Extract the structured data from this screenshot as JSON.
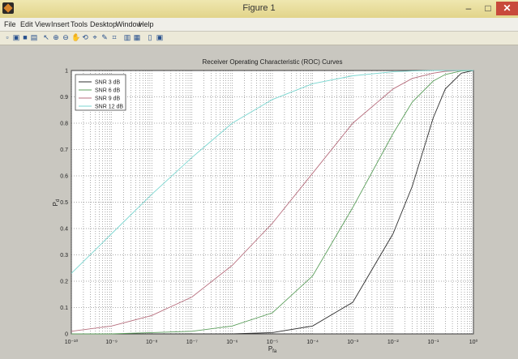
{
  "window": {
    "title": "Figure 1",
    "minimize_label": "–",
    "maximize_label": "□",
    "close_label": "✕"
  },
  "menu": {
    "items": [
      "File",
      "Edit",
      "View",
      "Insert",
      "Tools",
      "Desktop",
      "Window",
      "Help"
    ]
  },
  "toolbar": {
    "icons": [
      "new-figure-icon",
      "open-file-icon",
      "save-icon",
      "print-icon",
      "edit-plot-icon",
      "zoom-in-icon",
      "zoom-out-icon",
      "pan-icon",
      "rotate-3d-icon",
      "data-cursor-icon",
      "brush-icon",
      "link-icon",
      "colorbar-icon",
      "legend-icon",
      "hide-plot-tools-icon",
      "show-plot-tools-icon"
    ],
    "glyphs": [
      "▫",
      "▣",
      "■",
      "▤",
      "↖",
      "⊕",
      "⊖",
      "✋",
      "⟲",
      "⌖",
      "✎",
      "⌗",
      "▥",
      "▦",
      "▯",
      "▣"
    ]
  },
  "colors": {
    "series": [
      "#2f2f2f",
      "#5c9f5c",
      "#b76f7e",
      "#7bd6d0"
    ]
  },
  "chart_data": {
    "type": "line",
    "title": "Receiver Operating Characteristic (ROC) Curves",
    "xlabel": "P_fa",
    "ylabel": "P_d",
    "xscale": "log",
    "xlim": [
      1e-10,
      1
    ],
    "ylim": [
      0,
      1
    ],
    "grid": true,
    "legend_position": "top-left",
    "x_tick_labels": [
      "10⁻¹⁰",
      "10⁻⁹",
      "10⁻⁸",
      "10⁻⁷",
      "10⁻⁶",
      "10⁻⁵",
      "10⁻⁴",
      "10⁻³",
      "10⁻²",
      "10⁻¹",
      "10⁰"
    ],
    "y_tick_labels": [
      "0",
      "0.1",
      "0.2",
      "0.3",
      "0.4",
      "0.5",
      "0.6",
      "0.7",
      "0.8",
      "0.9",
      "1"
    ],
    "x": [
      1e-10,
      1e-09,
      1e-08,
      1e-07,
      1e-06,
      1e-05,
      0.0001,
      0.001,
      0.01,
      0.03,
      0.1,
      0.2,
      0.5,
      1
    ],
    "series": [
      {
        "name": "SNR 3 dB",
        "values": [
          0.0,
          0.0,
          0.0,
          0.0,
          0.0,
          0.005,
          0.03,
          0.12,
          0.38,
          0.56,
          0.82,
          0.93,
          0.99,
          1.0
        ]
      },
      {
        "name": "SNR 6 dB",
        "values": [
          0.0,
          0.0,
          0.005,
          0.01,
          0.03,
          0.08,
          0.22,
          0.48,
          0.76,
          0.88,
          0.96,
          0.985,
          0.998,
          1.0
        ]
      },
      {
        "name": "SNR 9 dB",
        "values": [
          0.01,
          0.03,
          0.07,
          0.14,
          0.26,
          0.42,
          0.61,
          0.8,
          0.93,
          0.97,
          0.99,
          0.997,
          1.0,
          1.0
        ]
      },
      {
        "name": "SNR 12 dB",
        "values": [
          0.23,
          0.38,
          0.53,
          0.67,
          0.8,
          0.89,
          0.95,
          0.98,
          0.995,
          0.998,
          1.0,
          1.0,
          1.0,
          1.0
        ]
      }
    ]
  }
}
